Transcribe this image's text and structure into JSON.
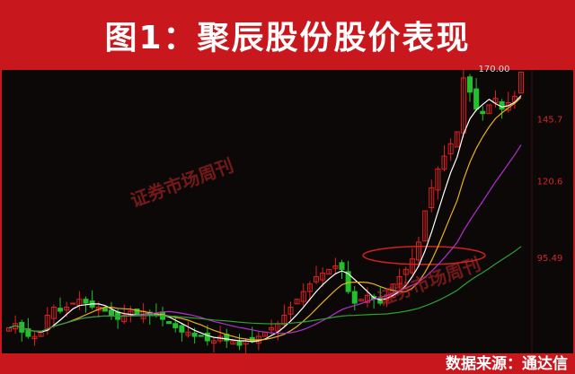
{
  "title": "图1：聚辰股份股价表现",
  "footer": "数据来源：通达信",
  "watermark": "证券市场周刊",
  "chart_data": {
    "type": "candlestick",
    "title": "图1：聚辰股份股价表现",
    "yscale": "log",
    "ylim": [
      72,
      170
    ],
    "y_ticks": [
      95.49,
      120.6,
      145.7,
      170.0
    ],
    "y_tick_labels": [
      "95.49",
      "120.6",
      "145.7",
      "170.00"
    ],
    "grid": false,
    "up_color": "#e0201e",
    "down_color": "#22c02a",
    "ma_colors": [
      "#ffffff",
      "#e8b020",
      "#b030d0",
      "#30a030"
    ],
    "ma_periods": [
      5,
      10,
      20,
      60
    ],
    "close": [
      77,
      78,
      76,
      75,
      75,
      76,
      80,
      82,
      81,
      82,
      83,
      84,
      83,
      82,
      82,
      81,
      80,
      79,
      80,
      81,
      80,
      81,
      80,
      80,
      79,
      78,
      77,
      76,
      76,
      75,
      75,
      74,
      74,
      75,
      74,
      74,
      73,
      74,
      74,
      75,
      76,
      77,
      78,
      80,
      82,
      84,
      86,
      88,
      90,
      91,
      92,
      93,
      92,
      86,
      83,
      84,
      85,
      84,
      83,
      85,
      88,
      90,
      92,
      95,
      100,
      110,
      118,
      125,
      130,
      135,
      140,
      165,
      158,
      150,
      148,
      152,
      155,
      150,
      153,
      156,
      168
    ],
    "annotation_color": "#d02020",
    "annotation_level": 95.49
  }
}
